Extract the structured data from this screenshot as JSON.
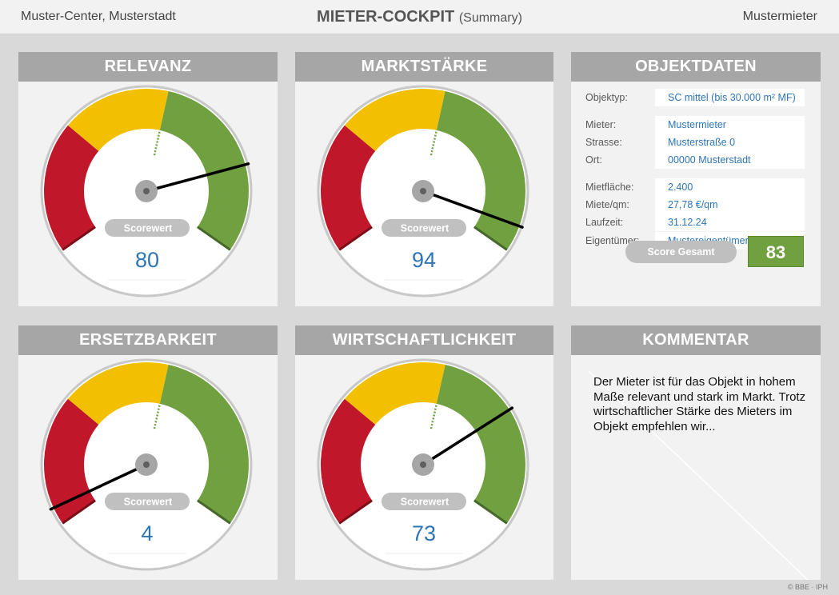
{
  "header": {
    "location": "Muster-Center, Musterstadt",
    "title": "MIETER-COCKPIT",
    "subtitle": "(Summary)",
    "tenant": "Mustermieter"
  },
  "gauges": [
    {
      "title": "RELEVANZ",
      "button": "Scorewert",
      "score": "80",
      "value": 80
    },
    {
      "title": "MARKTSTÄRKE",
      "button": "Scorewert",
      "score": "94",
      "value": 94
    },
    {
      "title": "ERSETZBARKEIT",
      "button": "Scorewert",
      "score": "4",
      "value": 4
    },
    {
      "title": "WIRTSCHAFTLICHKEIT",
      "button": "Scorewert",
      "score": "73",
      "value": 73
    }
  ],
  "gauge_colors": {
    "red": "#c0172a",
    "yellow": "#f2c000",
    "green": "#70a040",
    "needle": "#000000",
    "score": "#2e75b6"
  },
  "objektdaten": {
    "title": "OBJEKTDATEN",
    "rows": [
      {
        "label": "Objektyp:",
        "value": "SC mittel (bis 30.000 m² MF)"
      },
      {
        "label": "Mieter:",
        "value": "Mustermieter"
      },
      {
        "label": "Strasse:",
        "value": "Musterstraße 0"
      },
      {
        "label": "Ort:",
        "value": "00000 Musterstadt"
      },
      {
        "label": "Mietfläche:",
        "value": "2.400"
      },
      {
        "label": "Miete/qm:",
        "value": "27,78 €/qm"
      },
      {
        "label": "Laufzeit:",
        "value": "31.12.24"
      },
      {
        "label": "Eigentümer:",
        "value": "Mustereigentümer"
      }
    ],
    "score_label": "Score Gesamt",
    "score_value": "83"
  },
  "kommentar": {
    "title": "KOMMENTAR",
    "text": "Der Mieter ist für das Objekt in hohem Maße relevant und stark im Markt. Trotz wirtschaftlicher Stärke des Mieters im Objekt empfehlen wir..."
  },
  "footer": {
    "copyright": "© BBE · IPH"
  }
}
